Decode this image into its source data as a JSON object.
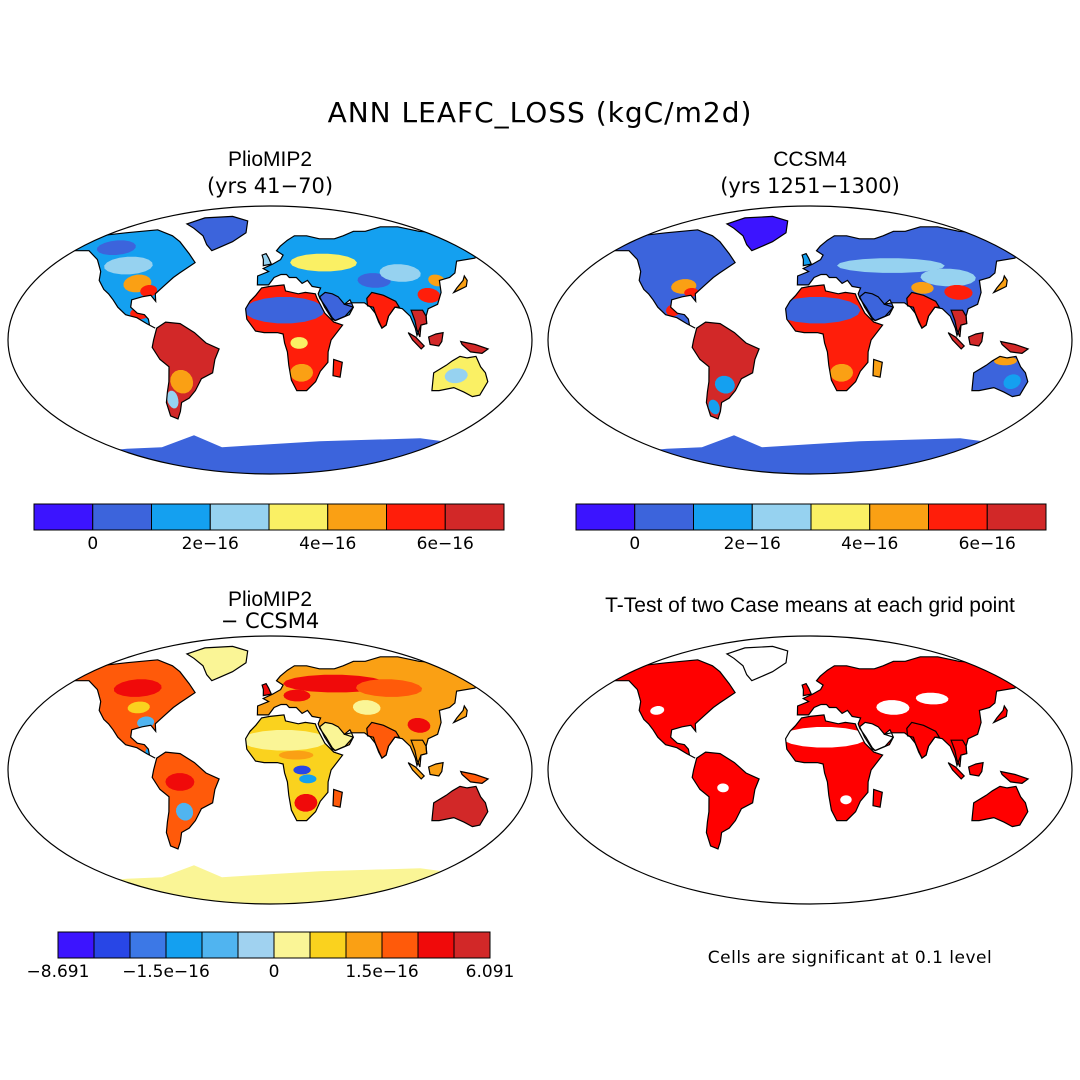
{
  "figure": {
    "title": "ANN LEAFC_LOSS (kgC/m2d)",
    "note": "Cells are significant at 0.1 level"
  },
  "colors": {
    "outline": "#000000",
    "ocean": "#ffffff",
    "significant": "#ff0000"
  },
  "panels": [
    {
      "id": "pliomip2",
      "title": "PlioMIP2",
      "subtitle": "(yrs 41−70)",
      "map_type": "absolute",
      "scheme": "absolute"
    },
    {
      "id": "ccsm4",
      "title": "CCSM4",
      "subtitle": "(yrs 1251−1300)",
      "map_type": "absolute",
      "scheme": "absolute"
    },
    {
      "id": "difference",
      "title": "PlioMIP2",
      "subtitle": "− CCSM4",
      "map_type": "difference",
      "scheme": "difference"
    },
    {
      "id": "ttest",
      "title": "T-Test of two Case means at each grid point",
      "subtitle": "",
      "map_type": "significance",
      "scheme": "significance"
    }
  ],
  "colorbars": {
    "absolute": {
      "colors": [
        "#3c14ff",
        "#3c64dc",
        "#14a0f0",
        "#96d2f0",
        "#faf064",
        "#faa014",
        "#ff1e0a",
        "#d22828"
      ],
      "ticks": [
        "0",
        "2e−16",
        "4e−16",
        "6e−16"
      ]
    },
    "difference": {
      "colors": [
        "#3c14ff",
        "#2846e6",
        "#3c78e6",
        "#14a0f0",
        "#50b4f0",
        "#a0d2f0",
        "#faf596",
        "#fad21e",
        "#faa014",
        "#ff5a0a",
        "#f00a0a",
        "#d22828"
      ],
      "ticks": [
        "−8.691",
        "−1.5e−16",
        "0",
        "1.5e−16",
        "6.091"
      ]
    }
  },
  "chart_data": {
    "type": "heatmap",
    "title": "ANN LEAFC_LOSS (kgC/m2d)",
    "variable": "LEAFC_LOSS",
    "units": "kgC/m2d",
    "season": "ANN",
    "projection": "Robinson",
    "maps": [
      {
        "name": "PlioMIP2 (yrs 41−70)",
        "levels": [
          "0",
          "2e−16",
          "4e−16",
          "6e−16"
        ],
        "regions": [
          {
            "region": "tropical South America",
            "value": "6e−16 and above"
          },
          {
            "region": "central Africa",
            "value": "6e−16 and above"
          },
          {
            "region": "South Asia",
            "value": "6e−16 and above"
          },
          {
            "region": "Australia",
            "value": "4e−16 to 6e−16"
          },
          {
            "region": "Sahara / Arabia",
            "value": "0 to 2e−16"
          },
          {
            "region": "Antarctica",
            "value": "0 to 2e−16"
          }
        ]
      },
      {
        "name": "CCSM4 (yrs 1251−1300)",
        "levels": [
          "0",
          "2e−16",
          "4e−16",
          "6e−16"
        ],
        "regions": [
          {
            "region": "tropical South America",
            "value": "6e−16 and above"
          },
          {
            "region": "central Africa",
            "value": "6e−16 and above"
          },
          {
            "region": "South-East Asia",
            "value": "6e−16 and above"
          },
          {
            "region": "Australia",
            "value": "0 to 2e−16"
          },
          {
            "region": "North Africa / Arabia",
            "value": "0 to 2e−16"
          },
          {
            "region": "Greenland",
            "value": "below 0"
          }
        ]
      },
      {
        "name": "PlioMIP2 − CCSM4",
        "levels": [
          "−8.691",
          "−1.5e−16",
          "0",
          "1.5e−16",
          "6.091"
        ],
        "regions": [
          {
            "region": "Australia",
            "value": "above 1.5e−16"
          },
          {
            "region": "northern Eurasia",
            "value": "above 0"
          },
          {
            "region": "Sahara",
            "value": "about 0"
          },
          {
            "region": "Congo basin",
            "value": "below −1.5e−16"
          },
          {
            "region": "Antarctica",
            "value": "about 0"
          }
        ]
      },
      {
        "name": "T-Test of two Case means at each grid point",
        "significance_level": 0.1,
        "significant_regions": [
          "North America",
          "South America",
          "Europe",
          "Asia",
          "Africa",
          "Australia"
        ],
        "not_significant_regions": [
          "Greenland",
          "Antarctica",
          "Sahara",
          "Arabia"
        ]
      }
    ]
  }
}
